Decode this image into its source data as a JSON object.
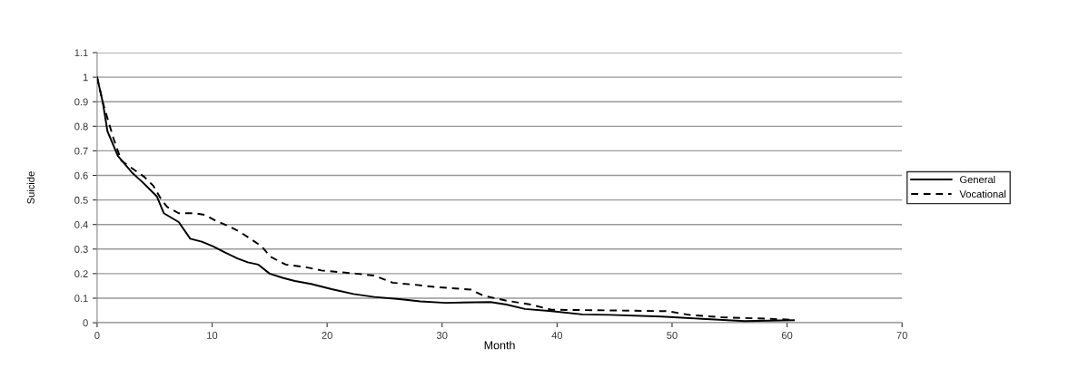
{
  "chart_data": {
    "type": "line",
    "xlabel": "Month",
    "ylabel": "Suicide",
    "xlim": [
      0,
      70
    ],
    "xticks": [
      0,
      10,
      20,
      30,
      40,
      50,
      60,
      70
    ],
    "ylim": [
      0,
      1.1
    ],
    "yticks": [
      0,
      0.1,
      0.2,
      0.3,
      0.4,
      0.5,
      0.6,
      0.7,
      0.8,
      0.9,
      1,
      1.1
    ],
    "grid": "y",
    "legend": "right",
    "marker": "none",
    "series": [
      {
        "name": "General",
        "color": "#000000",
        "line_style": "solid",
        "x": [
          0,
          0.5,
          0.9,
          1.8,
          3.0,
          4.0,
          5.2,
          5.8,
          7.1,
          8.1,
          9.1,
          10.1,
          11.1,
          12.2,
          13.1,
          14.0,
          15.0,
          16.2,
          17.2,
          18.6,
          20.4,
          22.3,
          24.1,
          26.3,
          28.1,
          30.3,
          34.2,
          35.6,
          37.2,
          39.5,
          42.2,
          44.6,
          49.1,
          52.6,
          56.3,
          60.6
        ],
        "values": [
          1.0,
          0.896,
          0.78,
          0.68,
          0.613,
          0.57,
          0.514,
          0.446,
          0.41,
          0.342,
          0.33,
          0.311,
          0.287,
          0.262,
          0.246,
          0.237,
          0.2,
          0.182,
          0.17,
          0.158,
          0.137,
          0.117,
          0.105,
          0.096,
          0.087,
          0.081,
          0.084,
          0.074,
          0.056,
          0.047,
          0.034,
          0.032,
          0.025,
          0.016,
          0.007,
          0.01
        ]
      },
      {
        "name": "Vocational",
        "color": "#000000",
        "line_style": "dashed",
        "x": [
          0,
          0.5,
          1.4,
          2.1,
          4.1,
          4.9,
          5.6,
          6.1,
          7.1,
          8.5,
          9.4,
          10.3,
          11.4,
          12.3,
          13.4,
          14.3,
          15.1,
          16.4,
          18.3,
          19.5,
          22.5,
          24.1,
          25.7,
          27.6,
          29.5,
          32.5,
          33.6,
          35.6,
          37.7,
          39.5,
          46.7,
          49.6,
          51.5,
          54.4,
          58.4,
          60.5
        ],
        "values": [
          1.0,
          0.896,
          0.754,
          0.66,
          0.594,
          0.557,
          0.5,
          0.471,
          0.446,
          0.446,
          0.439,
          0.416,
          0.394,
          0.373,
          0.34,
          0.311,
          0.268,
          0.237,
          0.225,
          0.213,
          0.2,
          0.192,
          0.163,
          0.155,
          0.145,
          0.135,
          0.11,
          0.09,
          0.074,
          0.053,
          0.049,
          0.047,
          0.032,
          0.022,
          0.016,
          0.012
        ]
      }
    ]
  }
}
